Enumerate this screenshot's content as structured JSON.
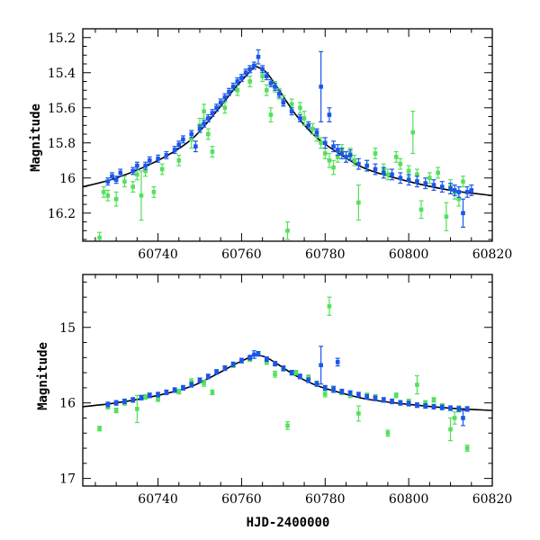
{
  "colors": {
    "blue": "#1a56e8",
    "green": "#55e05a",
    "model": "#000000"
  },
  "chart_data": [
    {
      "type": "scatter",
      "name": "panel-top",
      "xlabel": "",
      "ylabel": "Magnitude",
      "xlim": [
        60722,
        60820
      ],
      "ylim": [
        16.36,
        15.15
      ],
      "y_inverted": true,
      "xticks": [
        60740,
        60760,
        60780,
        60800,
        60820
      ],
      "xtick_labels": [
        "60740",
        "60760",
        "60780",
        "60800",
        "60820"
      ],
      "yticks": [
        15.2,
        15.4,
        15.6,
        15.8,
        16.0,
        16.2
      ],
      "ytick_labels": [
        "15.2",
        "15.4",
        "15.6",
        "15.8",
        "16",
        "16.2"
      ],
      "model_curve": {
        "x": [
          60722,
          60730,
          60740,
          60748,
          60754,
          60758,
          60761,
          60763,
          60764,
          60766,
          60769,
          60773,
          60778,
          60784,
          60790,
          60800,
          60810,
          60820
        ],
        "y": [
          16.05,
          16.0,
          15.9,
          15.78,
          15.62,
          15.5,
          15.42,
          15.37,
          15.37,
          15.4,
          15.5,
          15.64,
          15.77,
          15.87,
          15.95,
          16.02,
          16.07,
          16.1
        ]
      },
      "series": [
        {
          "color": "blue",
          "x": [
            60728,
            60729,
            60730,
            60731,
            60734,
            60735,
            60737,
            60738,
            60740,
            60742,
            60744,
            60745,
            60746,
            60748,
            60749,
            60750,
            60751,
            60752,
            60753,
            60754,
            60755,
            60756,
            60757,
            60758,
            60759,
            60760,
            60761,
            60762,
            60763,
            60764,
            60765,
            60766,
            60767,
            60768,
            60769,
            60770,
            60772,
            60774,
            60776,
            60778,
            60779,
            60780,
            60781,
            60782,
            60783,
            60784,
            60785,
            60786,
            60788,
            60790,
            60792,
            60794,
            60796,
            60798,
            60800,
            60802,
            60804,
            60806,
            60808,
            60810,
            60811,
            60812,
            60813,
            60814,
            60815
          ],
          "y": [
            16.02,
            15.99,
            16.01,
            15.97,
            15.96,
            15.93,
            15.93,
            15.9,
            15.89,
            15.87,
            15.84,
            15.81,
            15.78,
            15.75,
            15.82,
            15.72,
            15.69,
            15.66,
            15.63,
            15.6,
            15.57,
            15.54,
            15.51,
            15.48,
            15.45,
            15.43,
            15.4,
            15.38,
            15.36,
            15.31,
            15.38,
            15.42,
            15.46,
            15.48,
            15.52,
            15.57,
            15.62,
            15.66,
            15.7,
            15.74,
            15.48,
            15.8,
            15.64,
            15.82,
            15.84,
            15.86,
            15.88,
            15.87,
            15.92,
            15.93,
            15.95,
            15.97,
            15.98,
            16.0,
            16.01,
            16.02,
            16.03,
            16.04,
            16.05,
            16.06,
            16.07,
            16.08,
            16.2,
            16.08,
            16.07
          ],
          "yerr": [
            0.02,
            0.02,
            0.02,
            0.02,
            0.02,
            0.02,
            0.02,
            0.02,
            0.02,
            0.02,
            0.02,
            0.02,
            0.02,
            0.02,
            0.03,
            0.02,
            0.02,
            0.02,
            0.02,
            0.02,
            0.02,
            0.02,
            0.02,
            0.02,
            0.02,
            0.02,
            0.02,
            0.02,
            0.02,
            0.04,
            0.02,
            0.02,
            0.02,
            0.02,
            0.02,
            0.02,
            0.02,
            0.02,
            0.02,
            0.02,
            0.2,
            0.03,
            0.04,
            0.03,
            0.03,
            0.03,
            0.03,
            0.03,
            0.03,
            0.03,
            0.03,
            0.03,
            0.03,
            0.03,
            0.03,
            0.03,
            0.03,
            0.03,
            0.03,
            0.03,
            0.03,
            0.03,
            0.08,
            0.03,
            0.03
          ]
        },
        {
          "color": "green",
          "x": [
            60726,
            60727,
            60728,
            60730,
            60732,
            60734,
            60735,
            60736,
            60737,
            60739,
            60741,
            60745,
            60748,
            60750,
            60751,
            60752,
            60753,
            60756,
            60759,
            60762,
            60765,
            60766,
            60767,
            60768,
            60769,
            60770,
            60771,
            60772,
            60774,
            60775,
            60777,
            60778,
            60779,
            60780,
            60781,
            60782,
            60783,
            60784,
            60785,
            60786,
            60787,
            60788,
            60790,
            60792,
            60794,
            60795,
            60797,
            60798,
            60800,
            60801,
            60802,
            60803,
            60805,
            60807,
            60809,
            60810,
            60811,
            60812,
            60813
          ],
          "y": [
            16.34,
            16.08,
            16.1,
            16.12,
            16.02,
            16.05,
            15.98,
            16.1,
            15.96,
            16.08,
            15.95,
            15.9,
            15.78,
            15.7,
            15.62,
            15.75,
            15.85,
            15.6,
            15.5,
            15.45,
            15.42,
            15.5,
            15.64,
            15.48,
            15.52,
            15.56,
            16.3,
            15.58,
            15.6,
            15.66,
            15.72,
            15.76,
            15.8,
            15.86,
            15.9,
            15.94,
            15.88,
            15.84,
            15.88,
            15.86,
            15.9,
            16.14,
            15.93,
            15.86,
            15.95,
            15.98,
            15.88,
            15.92,
            15.96,
            15.74,
            15.98,
            16.18,
            16.0,
            15.97,
            16.22,
            16.05,
            16.08,
            16.12,
            16.02
          ],
          "yerr": [
            0.03,
            0.03,
            0.03,
            0.04,
            0.03,
            0.03,
            0.03,
            0.14,
            0.03,
            0.03,
            0.03,
            0.03,
            0.05,
            0.04,
            0.04,
            0.03,
            0.03,
            0.03,
            0.03,
            0.03,
            0.03,
            0.03,
            0.04,
            0.03,
            0.03,
            0.03,
            0.05,
            0.03,
            0.03,
            0.04,
            0.03,
            0.03,
            0.03,
            0.03,
            0.04,
            0.04,
            0.03,
            0.03,
            0.03,
            0.03,
            0.03,
            0.1,
            0.03,
            0.03,
            0.03,
            0.03,
            0.03,
            0.03,
            0.03,
            0.12,
            0.03,
            0.05,
            0.03,
            0.03,
            0.08,
            0.04,
            0.04,
            0.04,
            0.03
          ]
        }
      ]
    },
    {
      "type": "scatter",
      "name": "panel-bottom",
      "xlabel": "HJD-2400000",
      "ylabel": "Magnitude",
      "xlim": [
        60722,
        60820
      ],
      "ylim": [
        17.1,
        14.3
      ],
      "y_inverted": true,
      "xticks": [
        60740,
        60760,
        60780,
        60800,
        60820
      ],
      "xtick_labels": [
        "60740",
        "60760",
        "60780",
        "60800",
        "60820"
      ],
      "yticks": [
        15,
        16,
        17
      ],
      "ytick_labels": [
        "15",
        "16",
        "17"
      ],
      "model_curve": {
        "x": [
          60722,
          60730,
          60740,
          60748,
          60754,
          60758,
          60761,
          60763,
          60764,
          60766,
          60769,
          60773,
          60778,
          60784,
          60790,
          60800,
          60810,
          60820
        ],
        "y": [
          16.05,
          16.0,
          15.9,
          15.78,
          15.62,
          15.5,
          15.42,
          15.37,
          15.37,
          15.4,
          15.5,
          15.64,
          15.77,
          15.87,
          15.95,
          16.02,
          16.07,
          16.1
        ]
      },
      "series": [
        {
          "color": "blue",
          "x": [
            60728,
            60730,
            60732,
            60734,
            60736,
            60738,
            60740,
            60742,
            60744,
            60746,
            60748,
            60750,
            60752,
            60754,
            60756,
            60758,
            60760,
            60762,
            60763,
            60764,
            60766,
            60768,
            60770,
            60772,
            60774,
            60776,
            60778,
            60779,
            60780,
            60782,
            60783,
            60784,
            60786,
            60788,
            60790,
            60792,
            60794,
            60796,
            60798,
            60800,
            60802,
            60804,
            60806,
            60808,
            60810,
            60812,
            60813,
            60814
          ],
          "y": [
            16.02,
            16.0,
            15.98,
            15.96,
            15.93,
            15.9,
            15.89,
            15.86,
            15.83,
            15.8,
            15.76,
            15.7,
            15.65,
            15.59,
            15.54,
            15.49,
            15.44,
            15.4,
            15.36,
            15.35,
            15.42,
            15.48,
            15.54,
            15.6,
            15.65,
            15.7,
            15.75,
            15.5,
            15.8,
            15.82,
            15.46,
            15.85,
            15.87,
            15.89,
            15.92,
            15.94,
            15.96,
            15.98,
            16.0,
            16.01,
            16.03,
            16.04,
            16.05,
            16.06,
            16.07,
            16.08,
            16.2,
            16.08
          ],
          "yerr": [
            0.03,
            0.03,
            0.03,
            0.03,
            0.03,
            0.03,
            0.03,
            0.03,
            0.03,
            0.03,
            0.03,
            0.03,
            0.03,
            0.03,
            0.03,
            0.03,
            0.03,
            0.03,
            0.05,
            0.03,
            0.03,
            0.03,
            0.03,
            0.03,
            0.03,
            0.03,
            0.03,
            0.25,
            0.03,
            0.04,
            0.05,
            0.03,
            0.03,
            0.03,
            0.03,
            0.03,
            0.03,
            0.03,
            0.03,
            0.03,
            0.03,
            0.03,
            0.03,
            0.03,
            0.03,
            0.03,
            0.1,
            0.03
          ]
        },
        {
          "color": "green",
          "x": [
            60726,
            60728,
            60730,
            60732,
            60735,
            60737,
            60740,
            60745,
            60748,
            60751,
            60753,
            60758,
            60762,
            60766,
            60768,
            60770,
            60771,
            60773,
            60776,
            60778,
            60780,
            60781,
            60782,
            60784,
            60786,
            60788,
            60790,
            60792,
            60795,
            60797,
            60800,
            60802,
            60804,
            60806,
            60808,
            60810,
            60811,
            60812,
            60814
          ],
          "y": [
            16.34,
            16.05,
            16.1,
            16.0,
            16.08,
            15.92,
            15.95,
            15.85,
            15.72,
            15.74,
            15.86,
            15.5,
            15.42,
            15.46,
            15.62,
            15.55,
            16.3,
            15.6,
            15.66,
            15.74,
            15.88,
            14.72,
            15.82,
            15.86,
            15.9,
            16.14,
            15.9,
            15.92,
            16.4,
            15.9,
            15.98,
            15.76,
            16.0,
            15.96,
            16.04,
            16.35,
            16.2,
            16.08,
            16.6
          ],
          "yerr": [
            0.03,
            0.03,
            0.03,
            0.03,
            0.18,
            0.03,
            0.03,
            0.03,
            0.04,
            0.04,
            0.03,
            0.03,
            0.03,
            0.03,
            0.04,
            0.03,
            0.05,
            0.03,
            0.03,
            0.03,
            0.04,
            0.12,
            0.03,
            0.03,
            0.03,
            0.1,
            0.03,
            0.03,
            0.04,
            0.03,
            0.03,
            0.12,
            0.03,
            0.03,
            0.03,
            0.15,
            0.08,
            0.04,
            0.04
          ]
        }
      ]
    }
  ]
}
